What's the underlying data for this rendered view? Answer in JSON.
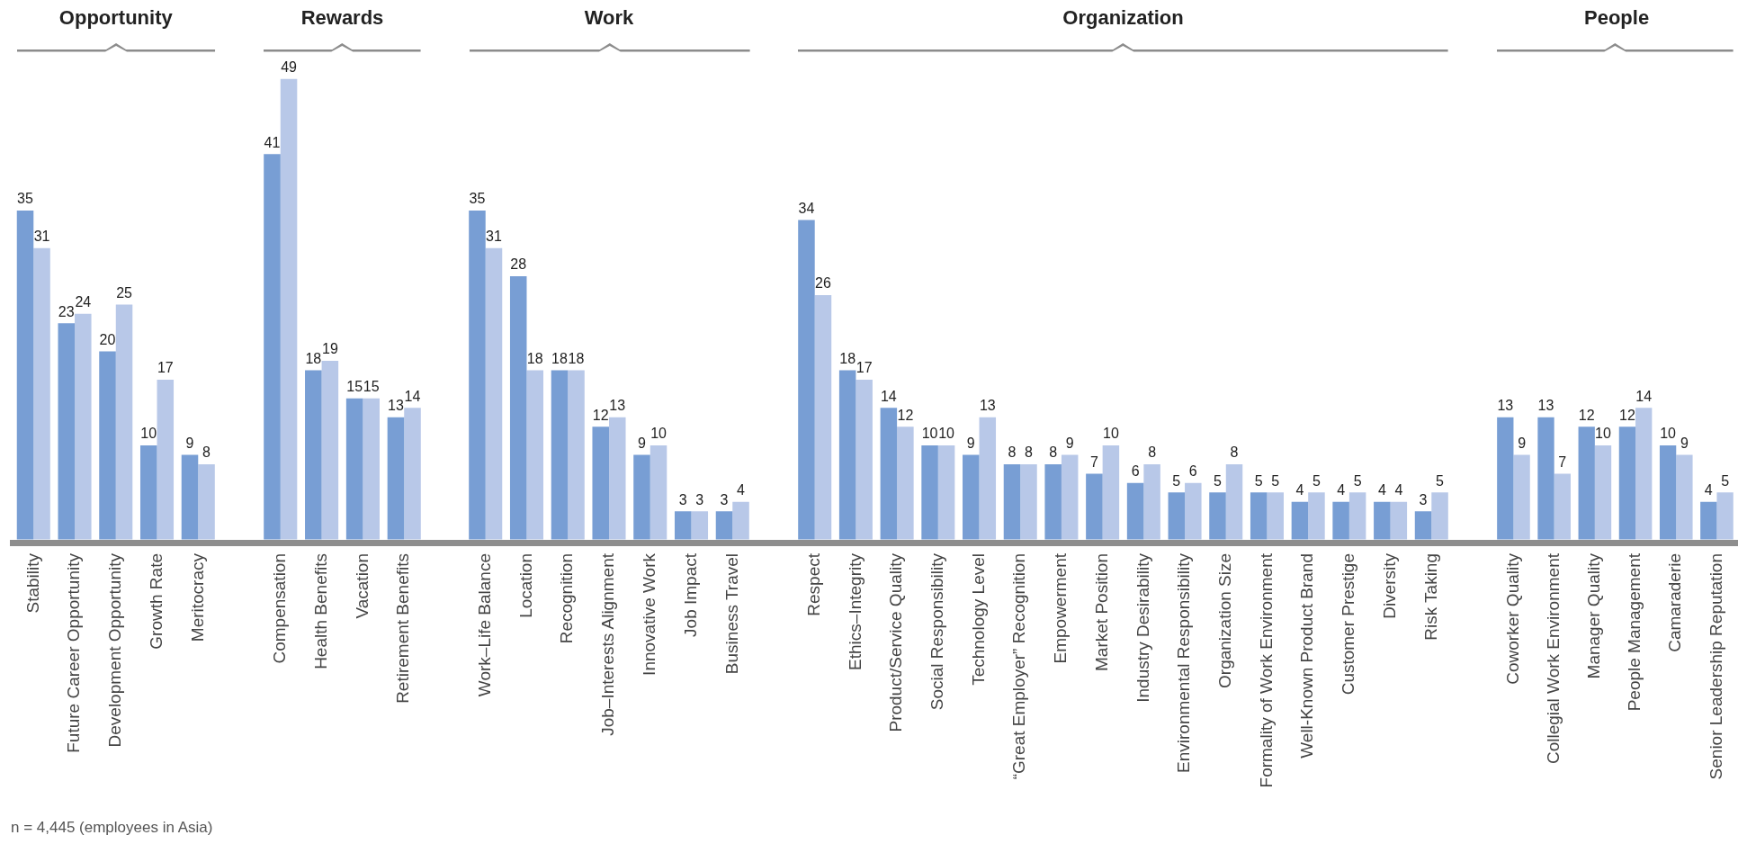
{
  "chart_data": [
    {
      "type": "bar",
      "title": "Opportunity",
      "categories": [
        "Stability",
        "Future Career Opportunity",
        "Development Opportunity",
        "Growth Rate",
        "Meritocracy"
      ],
      "series": [
        {
          "color": "#789ed4",
          "values": [
            35,
            23,
            20,
            10,
            9
          ]
        },
        {
          "color": "#b8c8e8",
          "values": [
            31,
            24,
            25,
            17,
            8
          ]
        }
      ],
      "data_labels": true,
      "grid": false,
      "legend": false,
      "tick_labels": "x",
      "annotations": [
        "n = 4,445 (employees in Asia)"
      ]
    },
    {
      "type": "bar",
      "title": "Rewards",
      "categories": [
        "Compensation",
        "Health Benefits",
        "Vacation",
        "Retirement Benefits"
      ],
      "series": [
        {
          "color": "#789ed4",
          "values": [
            41,
            18,
            15,
            13
          ]
        },
        {
          "color": "#b8c8e8",
          "values": [
            49,
            19,
            15,
            14
          ]
        }
      ],
      "data_labels": true,
      "grid": false,
      "legend": false,
      "tick_labels": "x"
    },
    {
      "type": "bar",
      "title": "Work",
      "categories": [
        "Work–Life Balance",
        "Location",
        "Recognition",
        "Job–Interests Alignment",
        "Innovative Work",
        "Job Impact",
        "Business Travel"
      ],
      "series": [
        {
          "color": "#789ed4",
          "values": [
            35,
            28,
            18,
            12,
            9,
            3,
            3
          ]
        },
        {
          "color": "#b8c8e8",
          "values": [
            31,
            18,
            18,
            13,
            10,
            3,
            4
          ]
        }
      ],
      "data_labels": true,
      "grid": false,
      "legend": false,
      "tick_labels": "x"
    },
    {
      "type": "bar",
      "title": "Organization",
      "categories": [
        "Respect",
        "Ethics–Integrity",
        "Product/Service Quality",
        "Social Responsibility",
        "Technology Level",
        "“Great Employer” Recognition",
        "Empowerment",
        "Market Position",
        "Industry Desirability",
        "Environmental Responsibility",
        "Organization Size",
        "Formality of Work Environment",
        "Well-Known Product Brand",
        "Customer Prestige",
        "Diversity",
        "Risk Taking"
      ],
      "series": [
        {
          "color": "#789ed4",
          "values": [
            34,
            18,
            14,
            10,
            9,
            8,
            8,
            7,
            6,
            5,
            5,
            5,
            4,
            4,
            4,
            3
          ]
        },
        {
          "color": "#b8c8e8",
          "values": [
            26,
            17,
            12,
            10,
            13,
            8,
            9,
            10,
            8,
            6,
            8,
            5,
            5,
            5,
            4,
            5
          ]
        }
      ],
      "data_labels": true,
      "grid": false,
      "legend": false,
      "tick_labels": "x"
    },
    {
      "type": "bar",
      "title": "People",
      "categories": [
        "Coworker Quality",
        "Collegial Work Environment",
        "Manager Quality",
        "People Management",
        "Camaraderie",
        "Senior Leadership Reputation"
      ],
      "series": [
        {
          "color": "#789ed4",
          "values": [
            13,
            13,
            12,
            12,
            10,
            4
          ]
        },
        {
          "color": "#b8c8e8",
          "values": [
            9,
            7,
            10,
            14,
            9,
            5
          ]
        }
      ],
      "data_labels": true,
      "grid": false,
      "legend": false,
      "tick_labels": "x"
    }
  ]
}
